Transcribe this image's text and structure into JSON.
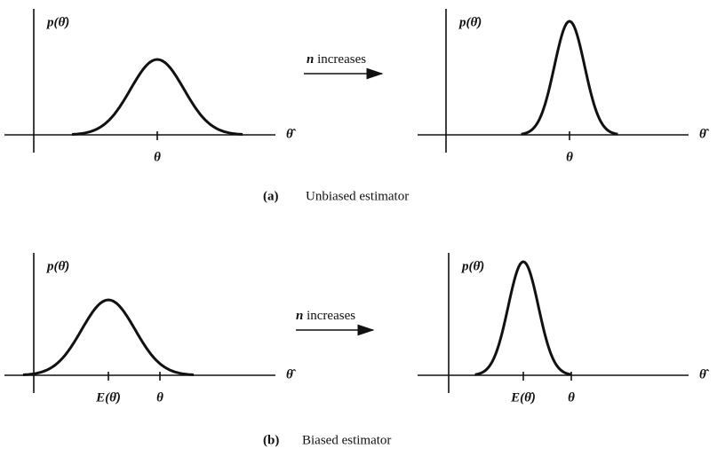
{
  "panels": [
    {
      "y_label": "p(θ̂)",
      "x_label": "θ̂",
      "ticks": [
        "θ"
      ]
    },
    {
      "y_label": "p(θ̂)",
      "x_label": "θ̂",
      "ticks": [
        "θ"
      ]
    },
    {
      "y_label": "p(θ̂)",
      "x_label": "θ̂",
      "ticks": [
        "E(θ̂)",
        "θ"
      ]
    },
    {
      "y_label": "p(θ̂)",
      "x_label": "θ̂",
      "ticks": [
        "E(θ̂)",
        "θ"
      ]
    }
  ],
  "arrows": [
    {
      "var": "n",
      "text": "increases"
    },
    {
      "var": "n",
      "text": "increases"
    }
  ],
  "captions": [
    {
      "tag": "(a)",
      "text": "Unbiased estimator"
    },
    {
      "tag": "(b)",
      "text": "Biased estimator"
    }
  ]
}
